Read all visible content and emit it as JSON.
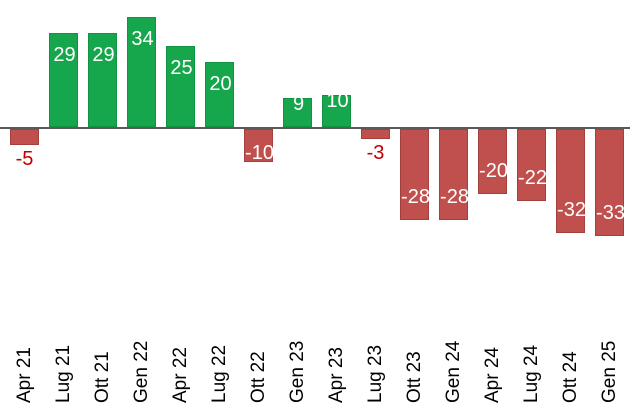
{
  "chart_data": {
    "type": "bar",
    "categories": [
      "Apr 21",
      "Lug 21",
      "Ott 21",
      "Gen 22",
      "Apr 22",
      "Lug 22",
      "Ott 22",
      "Gen 23",
      "Apr 23",
      "Lug 23",
      "Ott 23",
      "Gen 24",
      "Apr 24",
      "Lug 24",
      "Ott 24",
      "Gen 25"
    ],
    "values": [
      -5,
      29,
      29,
      34,
      25,
      20,
      -10,
      9,
      10,
      -3,
      -28,
      -28,
      -20,
      -22,
      -32,
      -33
    ],
    "xlabel": "",
    "ylabel": "",
    "ylim": [
      -40,
      40
    ],
    "grid": false,
    "legend": null,
    "zero_baseline": true,
    "tick_label_rotation_deg": 90,
    "data_labels": {
      "positive_placement": "inside-end-top",
      "negative_placement": "inside-end-bottom",
      "small_negative_placement": "outside-below"
    },
    "colors": {
      "positive_bar": "#16A64C",
      "negative_bar": "#C0504D",
      "label_inside": "#FFFFFF",
      "label_outside_negative": "#C00000",
      "axis_line": "#595959",
      "tick_label": "#000000",
      "background": "#FFFFFF"
    }
  }
}
